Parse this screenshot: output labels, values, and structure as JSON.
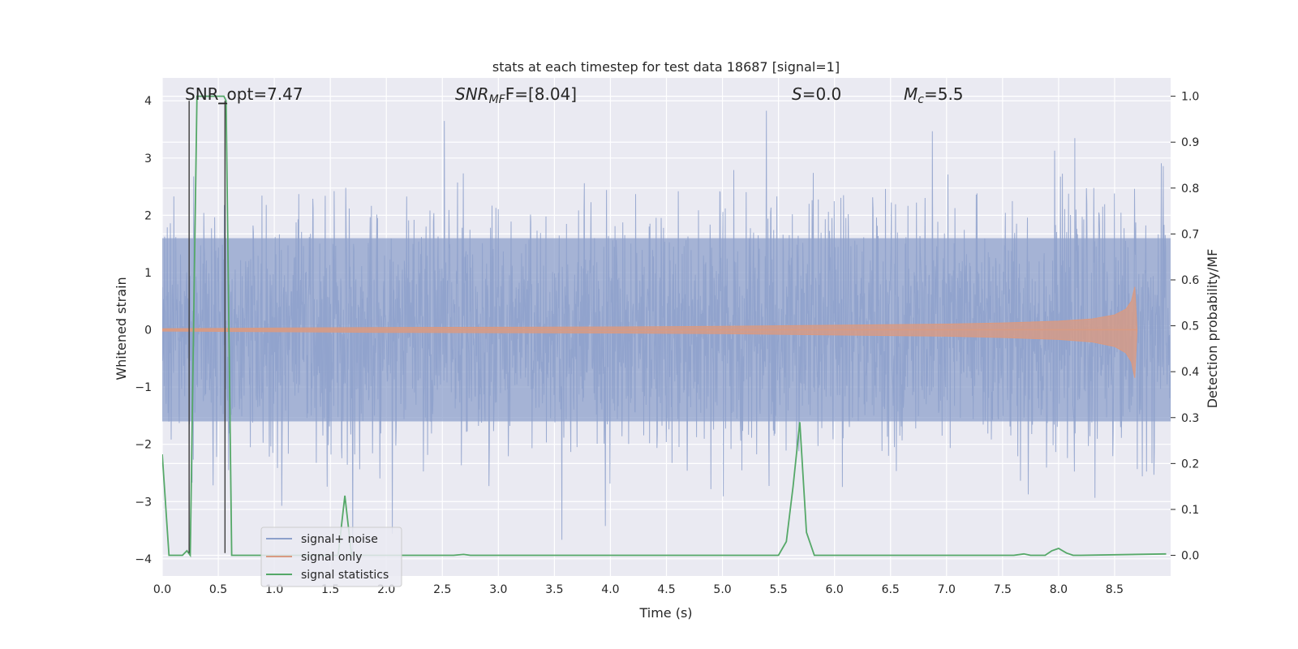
{
  "chart_data": {
    "type": "line",
    "title": "stats at each timestep for test data 18687 [signal=1]",
    "xlabel": "Time (s)",
    "ylabel": "Whitened strain",
    "ylabel_right": "Detection probability/MF",
    "xlim": [
      0.0,
      9.0
    ],
    "ylim": [
      -4.3,
      4.4
    ],
    "ylim_right": [
      -0.045,
      1.04
    ],
    "x_ticks": [
      "0.0",
      "0.5",
      "1.0",
      "1.5",
      "2.0",
      "2.5",
      "3.0",
      "3.5",
      "4.0",
      "4.5",
      "5.0",
      "5.5",
      "6.0",
      "6.5",
      "7.0",
      "7.5",
      "8.0",
      "8.5"
    ],
    "y_ticks": [
      "4",
      "3",
      "2",
      "1",
      "0",
      "−1",
      "−2",
      "−3",
      "−4"
    ],
    "y_ticks_right": [
      "1.0",
      "0.9",
      "0.8",
      "0.7",
      "0.6",
      "0.5",
      "0.4",
      "0.3",
      "0.2",
      "0.1",
      "0.0"
    ],
    "annotations": {
      "snr_opt": "SNR_opt=7.47",
      "snr_mf_base": "SNR",
      "snr_mf_sub": "MF",
      "snr_mf_rest": "F=[8.04]",
      "s_base": "S",
      "s_rest": "=0.0",
      "mc_base": "M",
      "mc_sub": "c",
      "mc_rest": "=5.5"
    },
    "series": [
      {
        "name": "signal+ noise",
        "axis": "left",
        "color": "#8da0cb",
        "noise_envelope": {
          "core_amplitude": 1.6,
          "max_peak": 4.0,
          "min_trough": -3.9
        }
      },
      {
        "name": "signal only",
        "axis": "left",
        "color": "#d99a82",
        "envelope": {
          "t": [
            0.0,
            1.0,
            2.0,
            3.0,
            4.0,
            5.0,
            6.0,
            7.0,
            7.5,
            8.0,
            8.3,
            8.5,
            8.6,
            8.65,
            8.68,
            8.7
          ],
          "amp": [
            0.02,
            0.03,
            0.04,
            0.045,
            0.05,
            0.06,
            0.08,
            0.1,
            0.12,
            0.15,
            0.19,
            0.26,
            0.36,
            0.5,
            0.75,
            0.0
          ]
        }
      },
      {
        "name": "signal statistics",
        "axis": "right",
        "color": "#55a868",
        "x": [
          0.0,
          0.06,
          0.18,
          0.22,
          0.25,
          0.31,
          0.55,
          0.57,
          0.62,
          0.65,
          1.5,
          1.57,
          1.63,
          1.69,
          1.75,
          2.6,
          2.69,
          2.75,
          5.5,
          5.57,
          5.63,
          5.69,
          5.75,
          5.82,
          5.9,
          7.6,
          7.69,
          7.75,
          7.82,
          7.88,
          7.94,
          8.0,
          8.07,
          8.13,
          8.2,
          8.96
        ],
        "y": [
          0.22,
          0.0,
          0.0,
          0.01,
          0.0,
          1.0,
          1.0,
          0.99,
          0.0,
          0.0,
          0.0,
          0.0,
          0.13,
          0.0,
          0.0,
          0.0,
          0.002,
          0.0,
          0.0,
          0.03,
          0.15,
          0.29,
          0.05,
          0.0,
          0.0,
          0.0,
          0.003,
          0.0,
          0.0,
          0.0,
          0.01,
          0.015,
          0.005,
          0.0,
          0.0,
          0.003
        ]
      }
    ],
    "markers": {
      "color": "#3c3c3c",
      "vertical_lines_s": [
        0.24,
        0.56
      ],
      "vertical_span_y": [
        -3.9,
        4.0
      ],
      "short_hline": {
        "y": 3.95,
        "x": [
          0.5,
          0.58
        ]
      }
    },
    "legend": {
      "position": "lower-left",
      "entries": [
        "signal+ noise",
        "signal only",
        "signal statistics"
      ]
    }
  }
}
